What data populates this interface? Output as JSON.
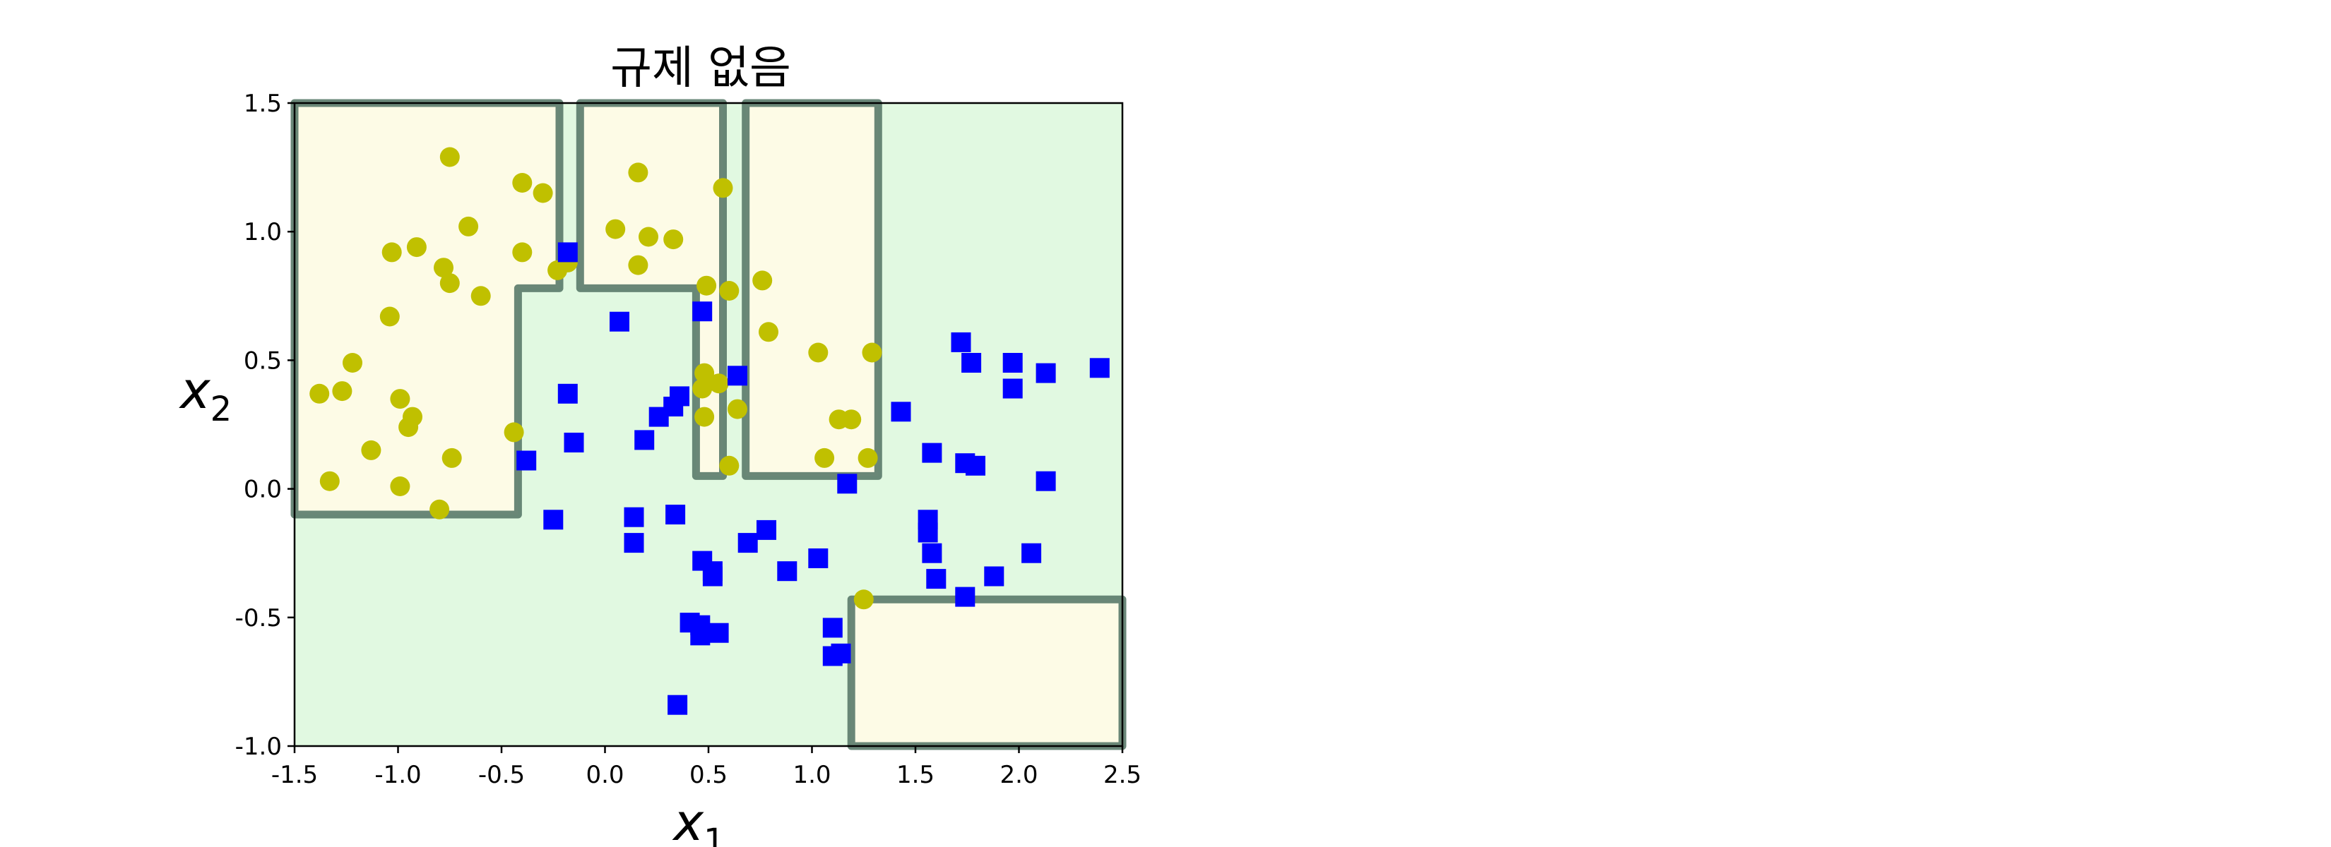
{
  "chart_data": {
    "type": "scatter",
    "title": "규제 없음",
    "xlabel": "x",
    "xlabel_sub": "1",
    "ylabel": "x",
    "ylabel_sub": "2",
    "xlim": [
      -1.5,
      2.5
    ],
    "ylim": [
      -1.0,
      1.5
    ],
    "xticks": [
      -1.5,
      -1.0,
      -0.5,
      0.0,
      0.5,
      1.0,
      1.5,
      2.0,
      2.5
    ],
    "xtick_labels": [
      "-1.5",
      "-1.0",
      "-0.5",
      "0.0",
      "0.5",
      "1.0",
      "1.5",
      "2.0",
      "2.5"
    ],
    "yticks": [
      -1.0,
      -0.5,
      0.0,
      0.5,
      1.0,
      1.5
    ],
    "ytick_labels": [
      "-1.0",
      "-0.5",
      "0.0",
      "0.5",
      "1.0",
      "1.5"
    ],
    "grid": false,
    "colors": {
      "class0_region": "#fdfbe6",
      "class1_region": "#e1f9e1",
      "class0_marker": "#c0c000",
      "class1_marker": "#0000ff",
      "boundary": "#5a7a6a"
    },
    "decision_regions": [
      {
        "class": 0,
        "polygon": [
          [
            -1.5,
            -0.1
          ],
          [
            -0.42,
            -0.1
          ],
          [
            -0.42,
            0.78
          ],
          [
            -0.22,
            0.78
          ],
          [
            -0.22,
            1.5
          ],
          [
            -1.5,
            1.5
          ]
        ]
      },
      {
        "class": 0,
        "polygon": [
          [
            -0.12,
            0.78
          ],
          [
            0.44,
            0.78
          ],
          [
            0.44,
            0.05
          ],
          [
            0.57,
            0.05
          ],
          [
            0.57,
            1.5
          ],
          [
            -0.12,
            1.5
          ]
        ]
      },
      {
        "class": 0,
        "polygon": [
          [
            0.68,
            0.05
          ],
          [
            1.32,
            0.05
          ],
          [
            1.32,
            1.5
          ],
          [
            0.68,
            1.5
          ]
        ]
      },
      {
        "class": 0,
        "polygon": [
          [
            1.19,
            -1.0
          ],
          [
            1.19,
            -0.43
          ],
          [
            2.5,
            -0.43
          ],
          [
            2.5,
            -1.0
          ]
        ]
      }
    ],
    "series": [
      {
        "class": 0,
        "marker": "circle",
        "points": [
          [
            -0.75,
            1.29
          ],
          [
            0.16,
            1.23
          ],
          [
            -0.4,
            1.19
          ],
          [
            -0.3,
            1.15
          ],
          [
            0.57,
            1.17
          ],
          [
            -0.66,
            1.02
          ],
          [
            0.05,
            1.01
          ],
          [
            0.21,
            0.98
          ],
          [
            0.33,
            0.97
          ],
          [
            -0.91,
            0.94
          ],
          [
            -1.03,
            0.92
          ],
          [
            -0.4,
            0.92
          ],
          [
            -0.78,
            0.86
          ],
          [
            0.16,
            0.87
          ],
          [
            -0.18,
            0.88
          ],
          [
            -0.23,
            0.85
          ],
          [
            -0.75,
            0.8
          ],
          [
            0.49,
            0.79
          ],
          [
            0.6,
            0.77
          ],
          [
            0.76,
            0.81
          ],
          [
            -0.6,
            0.75
          ],
          [
            -1.04,
            0.67
          ],
          [
            0.79,
            0.61
          ],
          [
            -1.22,
            0.49
          ],
          [
            1.03,
            0.53
          ],
          [
            1.29,
            0.53
          ],
          [
            0.48,
            0.45
          ],
          [
            0.55,
            0.41
          ],
          [
            0.47,
            0.39
          ],
          [
            -1.38,
            0.37
          ],
          [
            -1.27,
            0.38
          ],
          [
            -0.99,
            0.35
          ],
          [
            0.64,
            0.31
          ],
          [
            0.48,
            0.28
          ],
          [
            -0.93,
            0.28
          ],
          [
            -0.95,
            0.24
          ],
          [
            1.13,
            0.27
          ],
          [
            1.19,
            0.27
          ],
          [
            -0.44,
            0.22
          ],
          [
            -1.13,
            0.15
          ],
          [
            -0.74,
            0.12
          ],
          [
            1.06,
            0.12
          ],
          [
            1.27,
            0.12
          ],
          [
            0.6,
            0.09
          ],
          [
            -1.33,
            0.03
          ],
          [
            -0.99,
            0.01
          ],
          [
            -0.8,
            -0.08
          ],
          [
            1.25,
            -0.43
          ]
        ]
      },
      {
        "class": 1,
        "marker": "square",
        "points": [
          [
            -0.18,
            0.92
          ],
          [
            0.47,
            0.69
          ],
          [
            0.07,
            0.65
          ],
          [
            1.72,
            0.57
          ],
          [
            1.77,
            0.49
          ],
          [
            1.97,
            0.49
          ],
          [
            2.39,
            0.47
          ],
          [
            2.13,
            0.45
          ],
          [
            0.64,
            0.44
          ],
          [
            1.97,
            0.39
          ],
          [
            -0.18,
            0.37
          ],
          [
            0.36,
            0.36
          ],
          [
            0.33,
            0.32
          ],
          [
            0.26,
            0.28
          ],
          [
            1.43,
            0.3
          ],
          [
            0.19,
            0.19
          ],
          [
            -0.15,
            0.18
          ],
          [
            1.58,
            0.14
          ],
          [
            -0.38,
            0.11
          ],
          [
            1.74,
            0.1
          ],
          [
            1.79,
            0.09
          ],
          [
            2.13,
            0.03
          ],
          [
            1.17,
            0.02
          ],
          [
            -0.25,
            -0.12
          ],
          [
            0.14,
            -0.11
          ],
          [
            0.34,
            -0.1
          ],
          [
            1.56,
            -0.12
          ],
          [
            0.78,
            -0.16
          ],
          [
            1.56,
            -0.17
          ],
          [
            0.14,
            -0.21
          ],
          [
            0.69,
            -0.21
          ],
          [
            1.58,
            -0.25
          ],
          [
            2.06,
            -0.25
          ],
          [
            1.03,
            -0.27
          ],
          [
            0.47,
            -0.28
          ],
          [
            0.52,
            -0.32
          ],
          [
            0.88,
            -0.32
          ],
          [
            0.52,
            -0.34
          ],
          [
            1.6,
            -0.35
          ],
          [
            1.88,
            -0.34
          ],
          [
            1.74,
            -0.42
          ],
          [
            0.41,
            -0.52
          ],
          [
            1.1,
            -0.54
          ],
          [
            0.46,
            -0.53
          ],
          [
            0.55,
            -0.56
          ],
          [
            0.46,
            -0.57
          ],
          [
            1.1,
            -0.65
          ],
          [
            1.14,
            -0.64
          ],
          [
            0.35,
            -0.84
          ]
        ]
      }
    ]
  }
}
